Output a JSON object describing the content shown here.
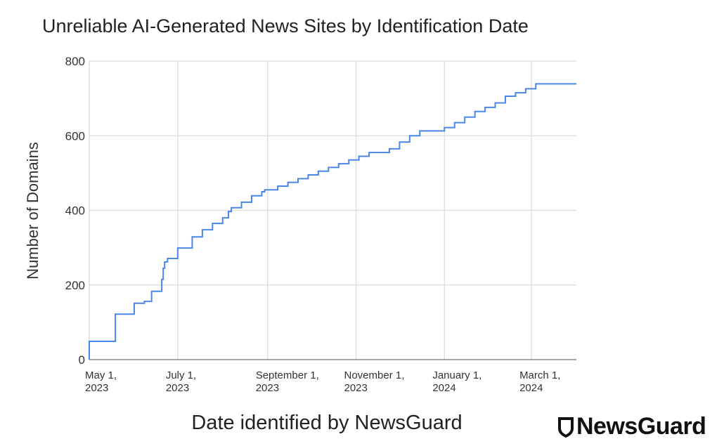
{
  "chart_data": {
    "type": "line",
    "title": "Unreliable AI-Generated News Sites by Identification Date",
    "xlabel": "Date identified by NewsGuard",
    "ylabel": "Number of Domains",
    "ylim": [
      0,
      800
    ],
    "xlim": [
      "2023-05-01",
      "2024-04-01"
    ],
    "yticks": [
      0,
      200,
      400,
      600,
      800
    ],
    "xticks": [
      {
        "date": "2023-05-01",
        "line1": "May 1,",
        "line2": "2023"
      },
      {
        "date": "2023-07-01",
        "line1": "July 1,",
        "line2": "2023"
      },
      {
        "date": "2023-09-01",
        "line1": "September 1,",
        "line2": "2023"
      },
      {
        "date": "2023-11-01",
        "line1": "November 1,",
        "line2": "2023"
      },
      {
        "date": "2024-01-01",
        "line1": "January 1,",
        "line2": "2024"
      },
      {
        "date": "2024-03-01",
        "line1": "March 1,",
        "line2": "2024"
      }
    ],
    "grid": true,
    "line_color": "#4a86e8",
    "series": [
      {
        "step": true,
        "points": [
          [
            "2023-05-01",
            49
          ],
          [
            "2023-05-19",
            122
          ],
          [
            "2023-06-01",
            151
          ],
          [
            "2023-06-08",
            156
          ],
          [
            "2023-06-13",
            183
          ],
          [
            "2023-06-20",
            215
          ],
          [
            "2023-06-21",
            245
          ],
          [
            "2023-06-22",
            262
          ],
          [
            "2023-06-24",
            271
          ],
          [
            "2023-07-01",
            299
          ],
          [
            "2023-07-11",
            329
          ],
          [
            "2023-07-18",
            348
          ],
          [
            "2023-07-25",
            365
          ],
          [
            "2023-08-01",
            380
          ],
          [
            "2023-08-05",
            397
          ],
          [
            "2023-08-07",
            407
          ],
          [
            "2023-08-14",
            422
          ],
          [
            "2023-08-21",
            439
          ],
          [
            "2023-08-28",
            450
          ],
          [
            "2023-08-30",
            455
          ],
          [
            "2023-09-08",
            465
          ],
          [
            "2023-09-15",
            475
          ],
          [
            "2023-09-22",
            485
          ],
          [
            "2023-09-29",
            495
          ],
          [
            "2023-10-06",
            505
          ],
          [
            "2023-10-13",
            515
          ],
          [
            "2023-10-20",
            525
          ],
          [
            "2023-10-27",
            535
          ],
          [
            "2023-11-03",
            545
          ],
          [
            "2023-11-10",
            555
          ],
          [
            "2023-11-24",
            565
          ],
          [
            "2023-12-01",
            583
          ],
          [
            "2023-12-08",
            600
          ],
          [
            "2023-12-15",
            613
          ],
          [
            "2024-01-01",
            622
          ],
          [
            "2024-01-08",
            635
          ],
          [
            "2024-01-15",
            650
          ],
          [
            "2024-01-22",
            665
          ],
          [
            "2024-01-29",
            676
          ],
          [
            "2024-02-05",
            688
          ],
          [
            "2024-02-12",
            706
          ],
          [
            "2024-02-19",
            715
          ],
          [
            "2024-02-26",
            726
          ],
          [
            "2024-03-04",
            739
          ],
          [
            "2024-04-01",
            739
          ]
        ]
      }
    ]
  },
  "logo": {
    "text": "NewsGuard"
  }
}
